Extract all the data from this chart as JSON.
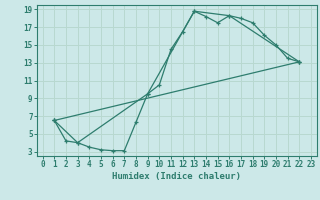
{
  "title": "",
  "xlabel": "Humidex (Indice chaleur)",
  "ylabel": "",
  "bg_color": "#cce8e8",
  "grid_color": "#b8d8d0",
  "line_color": "#2e7d6e",
  "xlim": [
    -0.5,
    23.5
  ],
  "ylim": [
    2.5,
    19.5
  ],
  "xticks": [
    0,
    1,
    2,
    3,
    4,
    5,
    6,
    7,
    8,
    9,
    10,
    11,
    12,
    13,
    14,
    15,
    16,
    17,
    18,
    19,
    20,
    21,
    22,
    23
  ],
  "yticks": [
    3,
    5,
    7,
    9,
    11,
    13,
    15,
    17,
    19
  ],
  "curve1_x": [
    1,
    2,
    3,
    4,
    5,
    6,
    7,
    8,
    9,
    10,
    11,
    12,
    13,
    14,
    15,
    16,
    17,
    18,
    19,
    20,
    21,
    22
  ],
  "curve1_y": [
    6.5,
    4.2,
    4.0,
    3.5,
    3.2,
    3.1,
    3.1,
    6.3,
    9.5,
    10.5,
    14.5,
    16.5,
    18.8,
    18.2,
    17.5,
    18.3,
    18.0,
    17.5,
    16.1,
    15.0,
    13.5,
    13.1
  ],
  "curve2_x": [
    1,
    3,
    9,
    13,
    16,
    22
  ],
  "curve2_y": [
    6.5,
    4.0,
    9.5,
    18.8,
    18.3,
    13.1
  ],
  "curve3_x": [
    1,
    22
  ],
  "curve3_y": [
    6.5,
    13.1
  ]
}
